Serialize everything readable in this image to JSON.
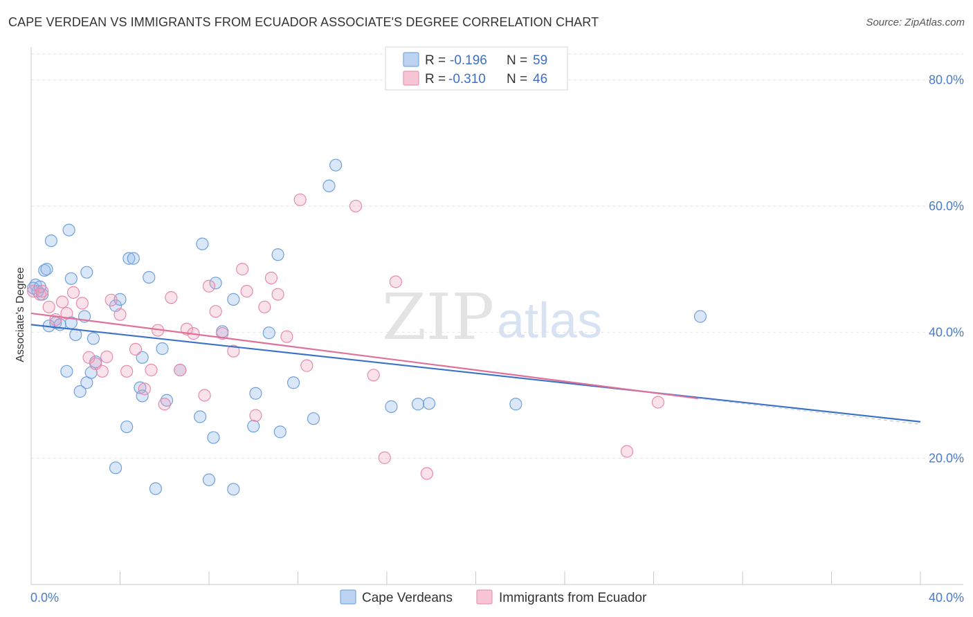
{
  "title": "CAPE VERDEAN VS IMMIGRANTS FROM ECUADOR ASSOCIATE'S DEGREE CORRELATION CHART",
  "source": "Source: ZipAtlas.com",
  "watermark": {
    "zip": "ZIP",
    "atlas": "atlas"
  },
  "legend": {
    "r_label": "R =",
    "n_label": "N =",
    "items": [
      {
        "r": "-0.196",
        "n": "59"
      },
      {
        "r": "-0.310",
        "n": "46"
      }
    ]
  },
  "chart_data": {
    "type": "scatter",
    "ylabel": "Associate's Degree",
    "x_tick_labels": [
      "0.0%",
      "40.0%"
    ],
    "y_tick_labels": [
      "80.0%",
      "60.0%",
      "40.0%",
      "20.0%"
    ],
    "xlim": [
      0,
      40
    ],
    "ylim": [
      0,
      85
    ],
    "y_ticks": [
      80,
      60,
      40,
      20
    ],
    "grid": true,
    "legend_position": "top-center",
    "colors": {
      "blue": "#6fa0dc",
      "pink": "#e88aaa",
      "blue_line": "#3b72c9",
      "pink_line": "#e0709a"
    },
    "series": [
      {
        "name": "Cape Verdeans",
        "color": "blue",
        "trend": [
          [
            0,
            41.2
          ],
          [
            40,
            25.8
          ]
        ],
        "points": [
          [
            0.3,
            46.5
          ],
          [
            0.2,
            47.5
          ],
          [
            0.5,
            46.0
          ],
          [
            0.9,
            54.5
          ],
          [
            0.6,
            49.8
          ],
          [
            0.7,
            50.0
          ],
          [
            1.1,
            41.5
          ],
          [
            0.8,
            41.0
          ],
          [
            1.3,
            41.2
          ],
          [
            1.7,
            56.2
          ],
          [
            1.8,
            41.5
          ],
          [
            1.8,
            48.5
          ],
          [
            2.5,
            49.5
          ],
          [
            2.4,
            42.5
          ],
          [
            2.5,
            32.0
          ],
          [
            2.9,
            35.3
          ],
          [
            2.0,
            39.6
          ],
          [
            2.8,
            39.0
          ],
          [
            3.8,
            44.2
          ],
          [
            4.0,
            45.2
          ],
          [
            4.4,
            51.7
          ],
          [
            4.6,
            51.7
          ],
          [
            5.3,
            48.7
          ],
          [
            1.6,
            33.8
          ],
          [
            2.7,
            33.6
          ],
          [
            2.2,
            30.6
          ],
          [
            4.3,
            25.0
          ],
          [
            3.8,
            18.5
          ],
          [
            4.9,
            31.2
          ],
          [
            5.0,
            29.9
          ],
          [
            5.0,
            36.0
          ],
          [
            5.6,
            15.2
          ],
          [
            5.9,
            37.4
          ],
          [
            6.1,
            29.2
          ],
          [
            6.7,
            34.0
          ],
          [
            7.6,
            26.6
          ],
          [
            7.7,
            54.0
          ],
          [
            8.0,
            16.6
          ],
          [
            8.2,
            23.3
          ],
          [
            8.3,
            47.8
          ],
          [
            8.6,
            40.1
          ],
          [
            9.1,
            45.2
          ],
          [
            9.1,
            15.1
          ],
          [
            10.0,
            25.1
          ],
          [
            10.1,
            30.3
          ],
          [
            10.7,
            39.9
          ],
          [
            11.1,
            52.3
          ],
          [
            11.2,
            24.2
          ],
          [
            11.8,
            32.0
          ],
          [
            12.7,
            26.3
          ],
          [
            13.4,
            63.2
          ],
          [
            13.7,
            66.5
          ],
          [
            16.2,
            28.2
          ],
          [
            17.9,
            28.7
          ],
          [
            17.4,
            28.6
          ],
          [
            21.8,
            28.6
          ],
          [
            30.1,
            42.5
          ],
          [
            0.1,
            47.0
          ],
          [
            0.4,
            47.2
          ]
        ]
      },
      {
        "name": "Immigrants from Ecuador",
        "color": "pink",
        "trend": [
          [
            0,
            43.0
          ],
          [
            30.0,
            29.5
          ]
        ],
        "trend_dashed_to": [
          [
            30.0,
            29.5
          ],
          [
            40,
            25.4
          ]
        ],
        "points": [
          [
            0.1,
            46.5
          ],
          [
            0.4,
            46.0
          ],
          [
            0.5,
            46.5
          ],
          [
            0.8,
            44.0
          ],
          [
            1.1,
            42.0
          ],
          [
            1.4,
            44.8
          ],
          [
            1.6,
            43.0
          ],
          [
            1.9,
            46.3
          ],
          [
            2.3,
            44.6
          ],
          [
            2.6,
            36.0
          ],
          [
            2.9,
            35.0
          ],
          [
            3.2,
            33.8
          ],
          [
            3.4,
            36.1
          ],
          [
            3.6,
            45.1
          ],
          [
            4.0,
            42.8
          ],
          [
            4.3,
            33.8
          ],
          [
            4.7,
            37.3
          ],
          [
            5.1,
            31.0
          ],
          [
            5.4,
            34.0
          ],
          [
            5.7,
            40.3
          ],
          [
            6.0,
            28.6
          ],
          [
            6.3,
            45.5
          ],
          [
            6.7,
            34.0
          ],
          [
            7.0,
            40.5
          ],
          [
            7.3,
            39.8
          ],
          [
            7.8,
            30.0
          ],
          [
            8.0,
            47.3
          ],
          [
            8.3,
            43.3
          ],
          [
            8.6,
            39.8
          ],
          [
            9.1,
            37.0
          ],
          [
            9.5,
            50.0
          ],
          [
            9.7,
            46.5
          ],
          [
            10.1,
            26.8
          ],
          [
            10.5,
            44.0
          ],
          [
            10.8,
            48.6
          ],
          [
            11.1,
            46.0
          ],
          [
            11.5,
            39.3
          ],
          [
            12.1,
            61.0
          ],
          [
            12.4,
            34.7
          ],
          [
            14.6,
            60.0
          ],
          [
            15.4,
            33.2
          ],
          [
            15.9,
            20.1
          ],
          [
            16.4,
            48.0
          ],
          [
            17.8,
            17.6
          ],
          [
            26.8,
            21.1
          ],
          [
            28.2,
            28.9
          ]
        ]
      }
    ]
  }
}
